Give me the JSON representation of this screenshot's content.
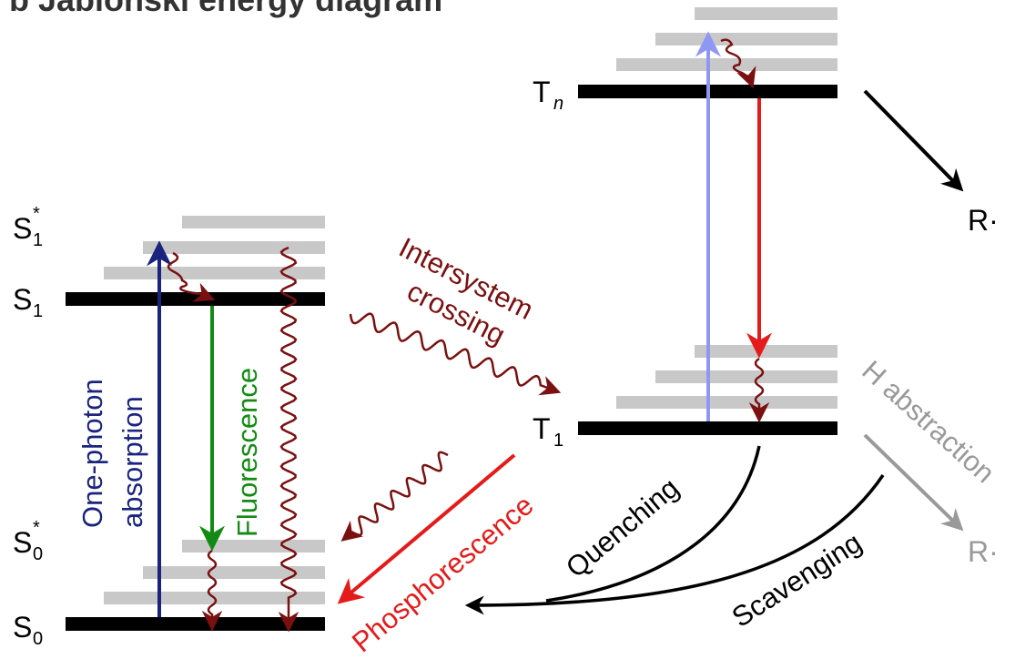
{
  "title": "b Jablonski energy diagram",
  "states": {
    "s1_star": {
      "main": "S",
      "sub": "1",
      "sup": "*"
    },
    "s1": {
      "main": "S",
      "sub": "1"
    },
    "s0_star": {
      "main": "S",
      "sub": "0",
      "sup": "*"
    },
    "s0": {
      "main": "S",
      "sub": "0"
    },
    "tn": {
      "main": "T",
      "sub": "n"
    },
    "t1": {
      "main": "T",
      "sub": "1"
    },
    "r_black": "R·",
    "r_gray": "R·"
  },
  "processes": {
    "absorption_line1": "One-photon",
    "absorption_line2": "absorption",
    "fluorescence": "Fluorescence",
    "isc_line1": "Intersystem",
    "isc_line2": "crossing",
    "phosphorescence": "Phosphorescence",
    "quenching": "Quenching",
    "scavenging": "Scavenging",
    "h_abstraction": "H abstraction"
  },
  "colors": {
    "absorption": "#1a237e",
    "fluorescence": "#138a13",
    "nonradiative": "#7b1010",
    "phosphorescence": "#e51a1a",
    "triplet_absorption": "#8f97f5",
    "level": "#000000",
    "vib_level": "#c8c8c8",
    "gray": "#999999"
  }
}
